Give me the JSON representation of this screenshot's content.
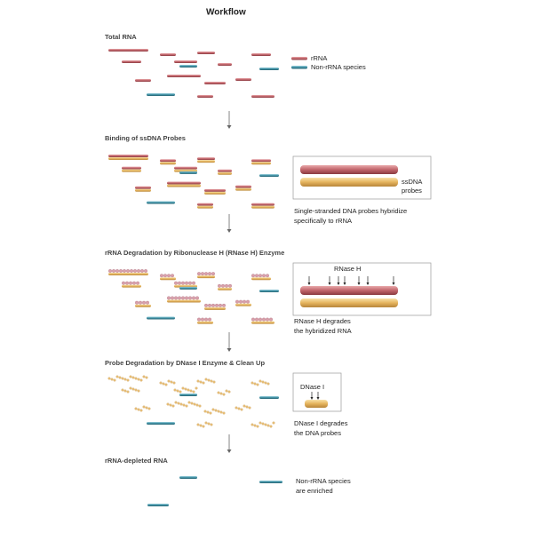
{
  "title": "Workflow",
  "steps": [
    {
      "label": "Total RNA",
      "legend": [
        "rRNA",
        "Non-rRNA species"
      ]
    },
    {
      "label": "Binding of ssDNA Probes",
      "box_label": [
        "ssDNA",
        "probes"
      ],
      "caption": [
        "Single-stranded DNA probes hybridize",
        "specifically to rRNA"
      ]
    },
    {
      "label": "rRNA Degradation by Ribonuclease H (RNase H) Enzyme",
      "box_label": [
        "RNase H"
      ],
      "caption": [
        "RNase H degrades",
        "the hybridized RNA"
      ]
    },
    {
      "label": "Probe Degradation by DNase I Enzyme & Clean Up",
      "box_label": [
        "DNase I"
      ],
      "caption": [
        "DNase I degrades",
        "the DNA probes"
      ]
    },
    {
      "label": "rRNA-depleted RNA",
      "caption": [
        "Non-rRNA species",
        "are enriched"
      ]
    }
  ]
}
